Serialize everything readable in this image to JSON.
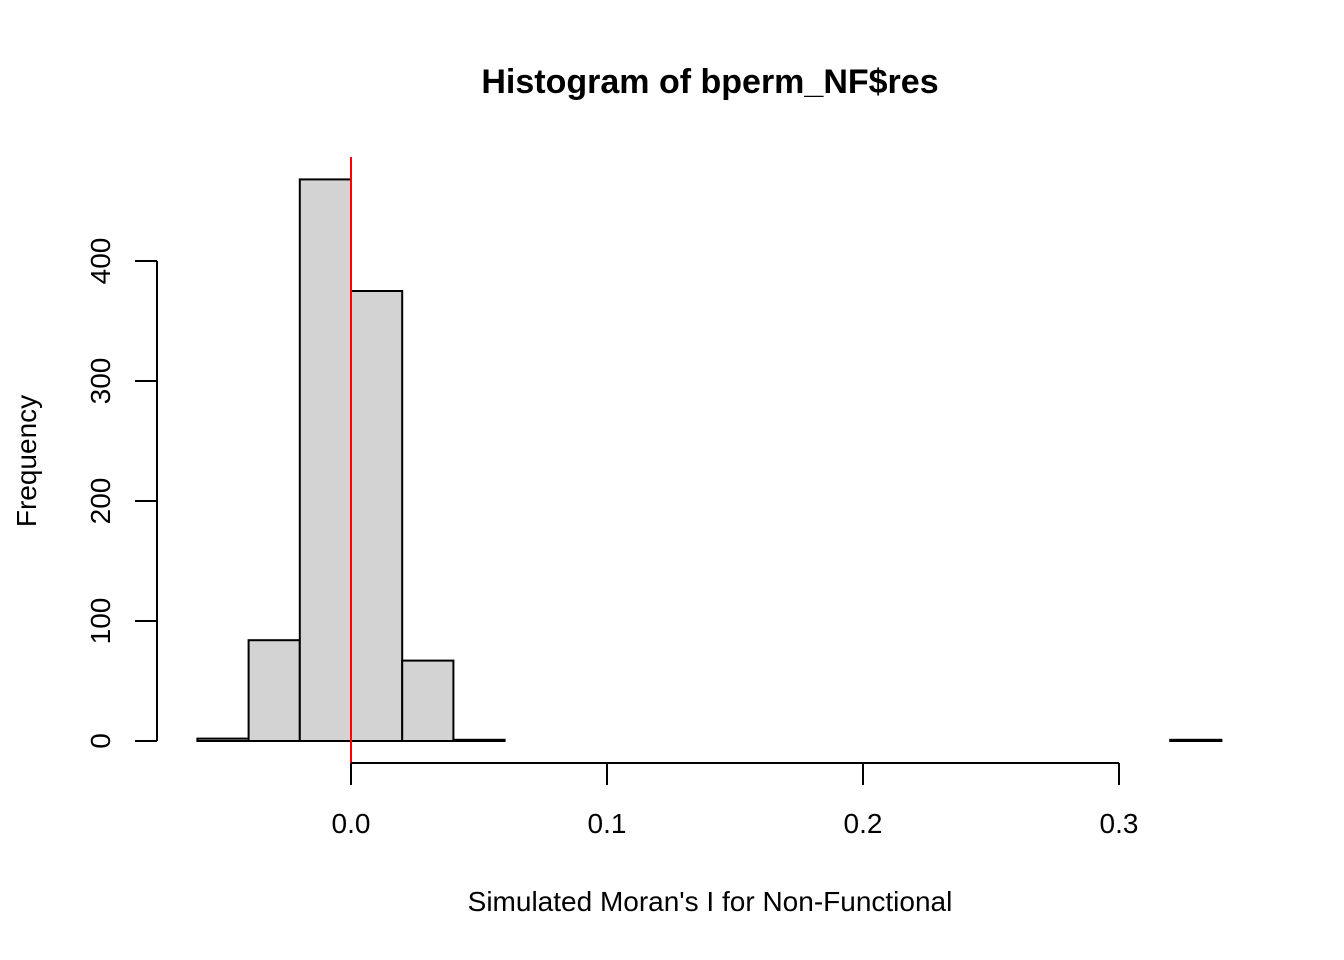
{
  "chart_data": {
    "type": "bar",
    "title": "Histogram of bperm_NF$res",
    "xlabel": "Simulated Moran's I for Non-Functional",
    "ylabel": "Frequency",
    "bins": [
      {
        "x0": -0.06,
        "x1": -0.04,
        "count": 2
      },
      {
        "x0": -0.04,
        "x1": -0.02,
        "count": 84
      },
      {
        "x0": -0.02,
        "x1": 0.0,
        "count": 468
      },
      {
        "x0": 0.0,
        "x1": 0.02,
        "count": 375
      },
      {
        "x0": 0.02,
        "x1": 0.04,
        "count": 67
      },
      {
        "x0": 0.04,
        "x1": 0.06,
        "count": 1
      },
      {
        "x0": 0.06,
        "x1": 0.08,
        "count": 0
      },
      {
        "x0": 0.08,
        "x1": 0.1,
        "count": 0
      },
      {
        "x0": 0.1,
        "x1": 0.12,
        "count": 0
      },
      {
        "x0": 0.12,
        "x1": 0.14,
        "count": 0
      },
      {
        "x0": 0.14,
        "x1": 0.16,
        "count": 0
      },
      {
        "x0": 0.16,
        "x1": 0.18,
        "count": 0
      },
      {
        "x0": 0.18,
        "x1": 0.2,
        "count": 0
      },
      {
        "x0": 0.2,
        "x1": 0.22,
        "count": 0
      },
      {
        "x0": 0.22,
        "x1": 0.24,
        "count": 0
      },
      {
        "x0": 0.24,
        "x1": 0.26,
        "count": 0
      },
      {
        "x0": 0.26,
        "x1": 0.28,
        "count": 0
      },
      {
        "x0": 0.28,
        "x1": 0.3,
        "count": 0
      },
      {
        "x0": 0.3,
        "x1": 0.32,
        "count": 0
      },
      {
        "x0": 0.32,
        "x1": 0.34,
        "count": 1
      }
    ],
    "xlim": [
      -0.06,
      0.34
    ],
    "ylim": [
      0,
      490
    ],
    "xticks": [
      0.0,
      0.1,
      0.2,
      0.3
    ],
    "xtick_labels": [
      "0.0",
      "0.1",
      "0.2",
      "0.3"
    ],
    "yticks": [
      0,
      100,
      200,
      300,
      400
    ],
    "ytick_labels": [
      "0",
      "100",
      "200",
      "300",
      "400"
    ],
    "reference_line": {
      "x": 0.0,
      "color": "#ff0000"
    },
    "bar_fill": "#d3d3d3",
    "bar_stroke": "#000000",
    "grid": false
  }
}
